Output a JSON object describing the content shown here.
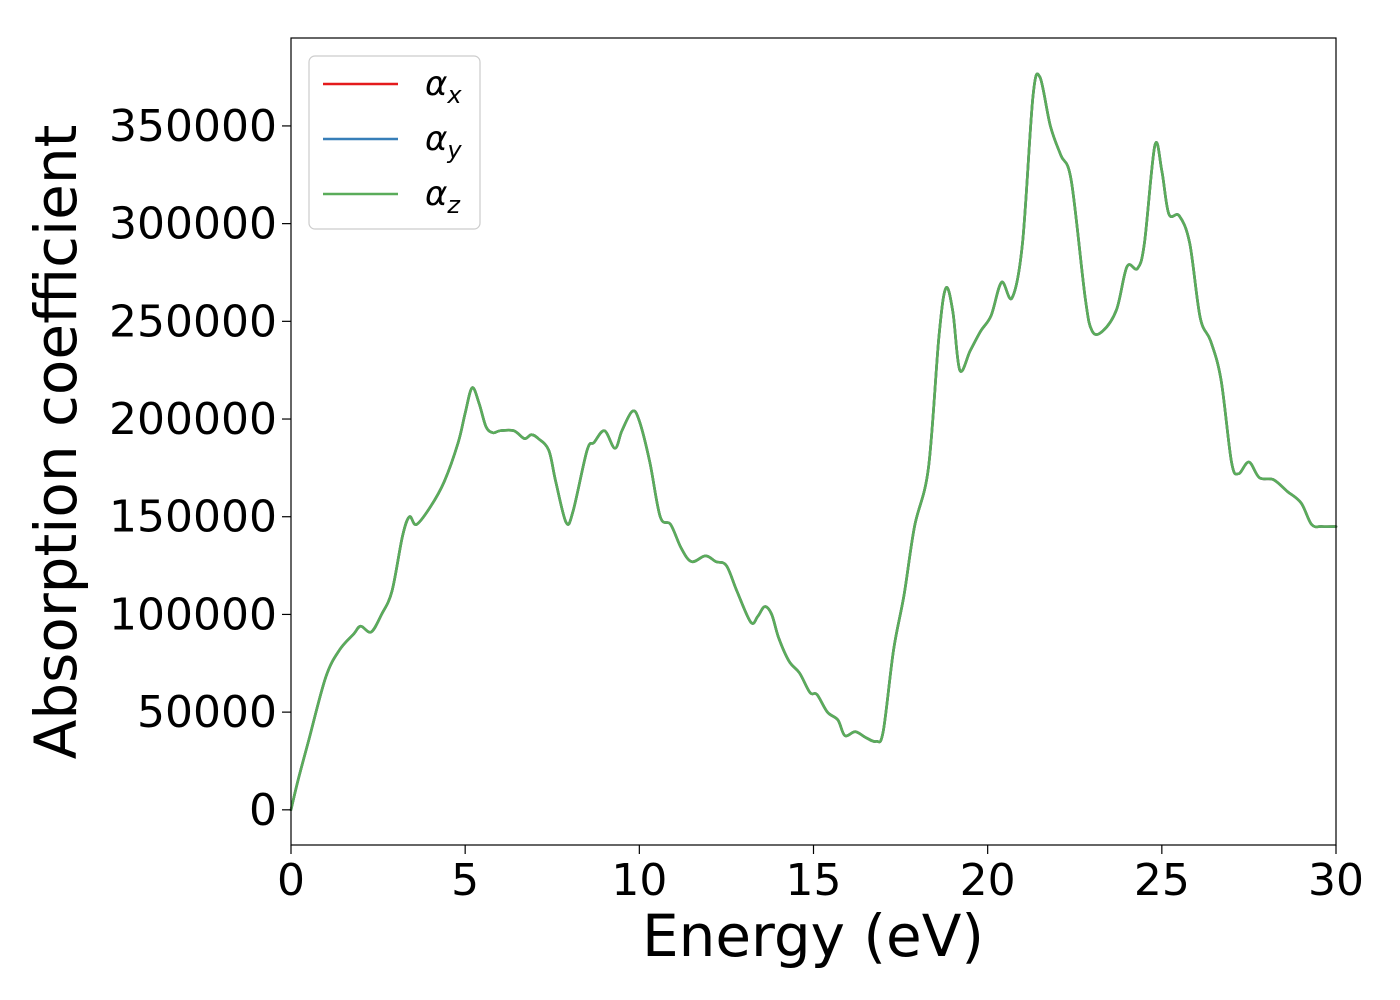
{
  "chart_data": {
    "type": "line",
    "title": "",
    "xlabel": "Energy (eV)",
    "ylabel": "Absorption coefficient",
    "xlim": [
      0,
      30
    ],
    "ylim": [
      -18000,
      395000
    ],
    "x_ticks": [
      0,
      5,
      10,
      15,
      20,
      25,
      30
    ],
    "x_tick_labels": [
      "0",
      "5",
      "10",
      "15",
      "20",
      "25",
      "30"
    ],
    "y_ticks": [
      0,
      50000,
      100000,
      150000,
      200000,
      250000,
      300000,
      350000
    ],
    "y_tick_labels": [
      "0",
      "50000",
      "100000",
      "150000",
      "200000",
      "250000",
      "300000",
      "350000"
    ],
    "grid": false,
    "legend_position": "top-left",
    "x": [
      0,
      0.2,
      0.5,
      1.0,
      1.4,
      1.8,
      2.0,
      2.3,
      2.6,
      2.9,
      3.2,
      3.4,
      3.6,
      4.0,
      4.4,
      4.8,
      5.0,
      5.2,
      5.4,
      5.6,
      5.8,
      6.0,
      6.4,
      6.7,
      6.9,
      7.1,
      7.4,
      7.6,
      7.9,
      8.1,
      8.5,
      8.7,
      9.0,
      9.3,
      9.5,
      9.8,
      10.0,
      10.3,
      10.6,
      10.9,
      11.2,
      11.5,
      11.9,
      12.2,
      12.5,
      12.8,
      13.2,
      13.4,
      13.6,
      13.8,
      14.0,
      14.3,
      14.6,
      14.9,
      15.1,
      15.4,
      15.7,
      15.9,
      16.2,
      16.5,
      16.8,
      17.0,
      17.3,
      17.6,
      17.9,
      18.3,
      18.6,
      18.8,
      19.0,
      19.2,
      19.5,
      19.8,
      20.1,
      20.4,
      20.7,
      21.0,
      21.3,
      21.5,
      21.8,
      22.1,
      22.4,
      22.8,
      23.0,
      23.3,
      23.7,
      24.0,
      24.3,
      24.5,
      24.8,
      25.0,
      25.2,
      25.5,
      25.8,
      26.1,
      26.4,
      26.7,
      27.0,
      27.2,
      27.5,
      27.8,
      28.2,
      28.6,
      29.0,
      29.3,
      29.6,
      30.0
    ],
    "series": [
      {
        "name": "α_x",
        "symbol": "α",
        "subscript": "x",
        "color": "#e41a1c",
        "values": [
          0,
          15000,
          35000,
          68000,
          82000,
          90000,
          94000,
          91000,
          100000,
          112000,
          140000,
          150000,
          146000,
          155000,
          168000,
          188000,
          203000,
          216000,
          208000,
          196000,
          193000,
          194000,
          194000,
          190000,
          192000,
          190000,
          184000,
          168000,
          147000,
          153000,
          184000,
          188000,
          194000,
          185000,
          194000,
          204000,
          199000,
          178000,
          150000,
          146000,
          134000,
          127000,
          130000,
          127000,
          125000,
          112000,
          96000,
          99000,
          104000,
          100000,
          88000,
          76000,
          70000,
          60000,
          59000,
          50000,
          46000,
          38000,
          40000,
          37000,
          35000,
          40000,
          82000,
          110000,
          145000,
          175000,
          242000,
          267000,
          255000,
          225000,
          235000,
          245000,
          253000,
          270000,
          262000,
          290000,
          365000,
          375000,
          350000,
          335000,
          322000,
          262000,
          245000,
          245000,
          256000,
          278000,
          277000,
          290000,
          340000,
          327000,
          305000,
          304000,
          290000,
          252000,
          240000,
          220000,
          178000,
          172000,
          178000,
          170000,
          169000,
          163000,
          157000,
          146000,
          145000,
          145000
        ]
      },
      {
        "name": "α_y",
        "symbol": "α",
        "subscript": "y",
        "color": "#377eb8",
        "values": [
          0,
          15000,
          35000,
          68000,
          82000,
          90000,
          94000,
          91000,
          100000,
          112000,
          140000,
          150000,
          146000,
          155000,
          168000,
          188000,
          203000,
          216000,
          208000,
          196000,
          193000,
          194000,
          194000,
          190000,
          192000,
          190000,
          184000,
          168000,
          147000,
          153000,
          184000,
          188000,
          194000,
          185000,
          194000,
          204000,
          199000,
          178000,
          150000,
          146000,
          134000,
          127000,
          130000,
          127000,
          125000,
          112000,
          96000,
          99000,
          104000,
          100000,
          88000,
          76000,
          70000,
          60000,
          59000,
          50000,
          46000,
          38000,
          40000,
          37000,
          35000,
          40000,
          82000,
          110000,
          145000,
          175000,
          242000,
          267000,
          255000,
          225000,
          235000,
          245000,
          253000,
          270000,
          262000,
          290000,
          365000,
          375000,
          350000,
          335000,
          322000,
          262000,
          245000,
          245000,
          256000,
          278000,
          277000,
          290000,
          340000,
          327000,
          305000,
          304000,
          290000,
          252000,
          240000,
          220000,
          178000,
          172000,
          178000,
          170000,
          169000,
          163000,
          157000,
          146000,
          145000,
          145000
        ]
      },
      {
        "name": "α_z",
        "symbol": "α",
        "subscript": "z",
        "color": "#5aac5a",
        "values": [
          0,
          15000,
          35000,
          68000,
          82000,
          90000,
          94000,
          91000,
          100000,
          112000,
          140000,
          150000,
          146000,
          155000,
          168000,
          188000,
          203000,
          216000,
          208000,
          196000,
          193000,
          194000,
          194000,
          190000,
          192000,
          190000,
          184000,
          168000,
          147000,
          153000,
          184000,
          188000,
          194000,
          185000,
          194000,
          204000,
          199000,
          178000,
          150000,
          146000,
          134000,
          127000,
          130000,
          127000,
          125000,
          112000,
          96000,
          99000,
          104000,
          100000,
          88000,
          76000,
          70000,
          60000,
          59000,
          50000,
          46000,
          38000,
          40000,
          37000,
          35000,
          40000,
          82000,
          110000,
          145000,
          175000,
          242000,
          267000,
          255000,
          225000,
          235000,
          245000,
          253000,
          270000,
          262000,
          290000,
          365000,
          375000,
          350000,
          335000,
          322000,
          262000,
          245000,
          245000,
          256000,
          278000,
          277000,
          290000,
          340000,
          327000,
          305000,
          304000,
          290000,
          252000,
          240000,
          220000,
          178000,
          172000,
          178000,
          170000,
          169000,
          163000,
          157000,
          146000,
          145000,
          145000
        ]
      }
    ]
  }
}
